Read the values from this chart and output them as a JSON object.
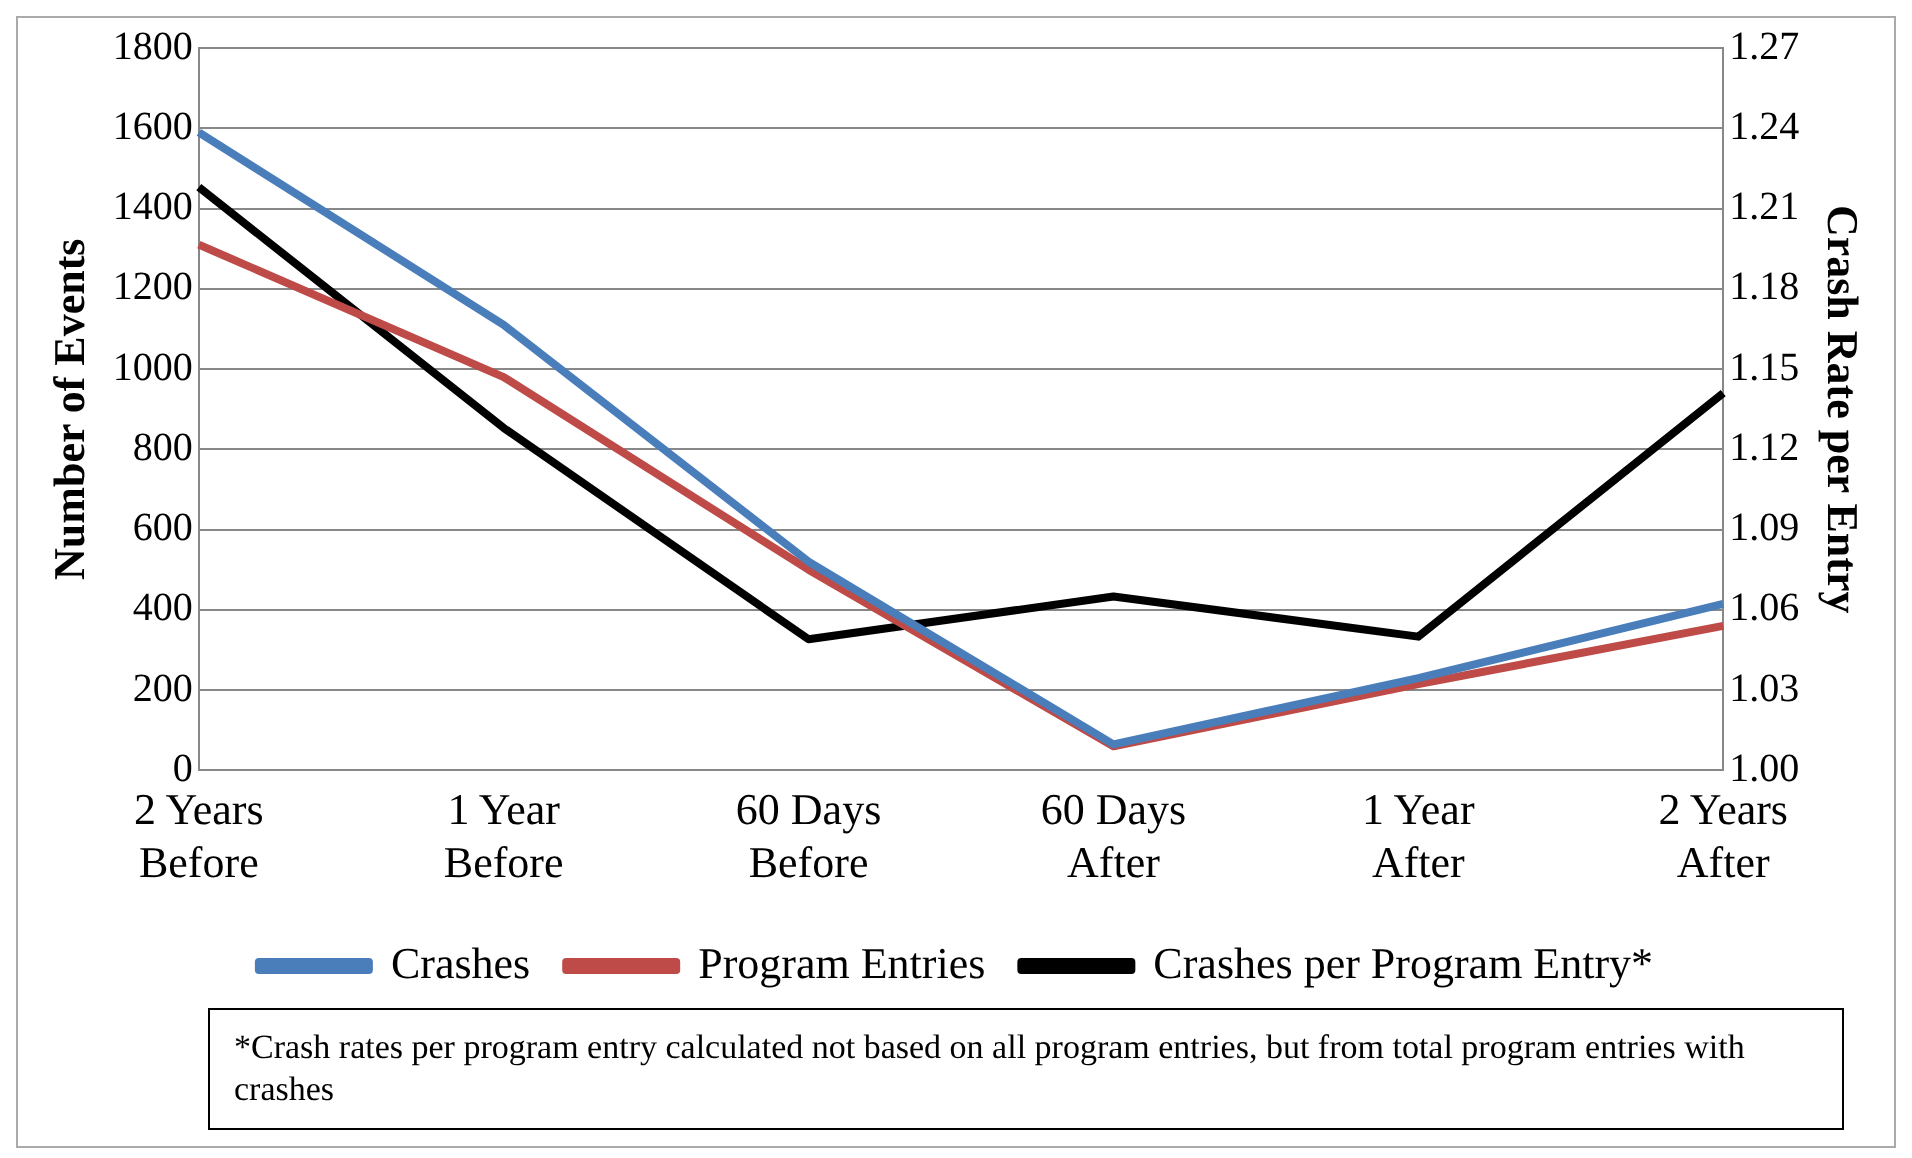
{
  "chart_data": {
    "type": "line",
    "categories": [
      "2 Years Before",
      "1 Year Before",
      "60 Days Before",
      "60 Days After",
      "1 Year After",
      "2 Years After"
    ],
    "ylabel": "Number of Events",
    "y2label": "Crash Rate per Entry",
    "series": [
      {
        "name": "Crashes",
        "color": "#4a7ebb",
        "values": [
          1590,
          1110,
          520,
          65,
          230,
          415
        ]
      },
      {
        "name": "Program Entries",
        "color": "#be4b48",
        "values": [
          1310,
          980,
          500,
          60,
          215,
          360
        ]
      },
      {
        "name": "Crashes per Program Entry*",
        "color": "#000000",
        "axis": "y2",
        "values": [
          1.218,
          1.128,
          1.049,
          1.065,
          1.05,
          1.141
        ]
      }
    ],
    "ylim": [
      0,
      1800
    ],
    "yticks": [
      0,
      200,
      400,
      600,
      800,
      1000,
      1200,
      1400,
      1600,
      1800
    ],
    "y2lim": [
      1.0,
      1.27
    ],
    "y2ticks": [
      {
        "value": 1.0,
        "label": "1.00"
      },
      {
        "value": 1.03,
        "label": "1.03"
      },
      {
        "value": 1.06,
        "label": "1.06"
      },
      {
        "value": 1.09,
        "label": "1.09"
      },
      {
        "value": 1.12,
        "label": "1.12"
      },
      {
        "value": 1.15,
        "label": "1.15"
      },
      {
        "value": 1.18,
        "label": "1.18"
      },
      {
        "value": 1.21,
        "label": "1.21"
      },
      {
        "value": 1.24,
        "label": "1.24"
      },
      {
        "value": 1.27,
        "label": "1.27"
      }
    ],
    "grid": "y",
    "legend": "bottom",
    "marker": "none",
    "annotations": [
      "*Crash rates per program entry calculated not based on all program entries, but from total program entries with crashes"
    ]
  }
}
